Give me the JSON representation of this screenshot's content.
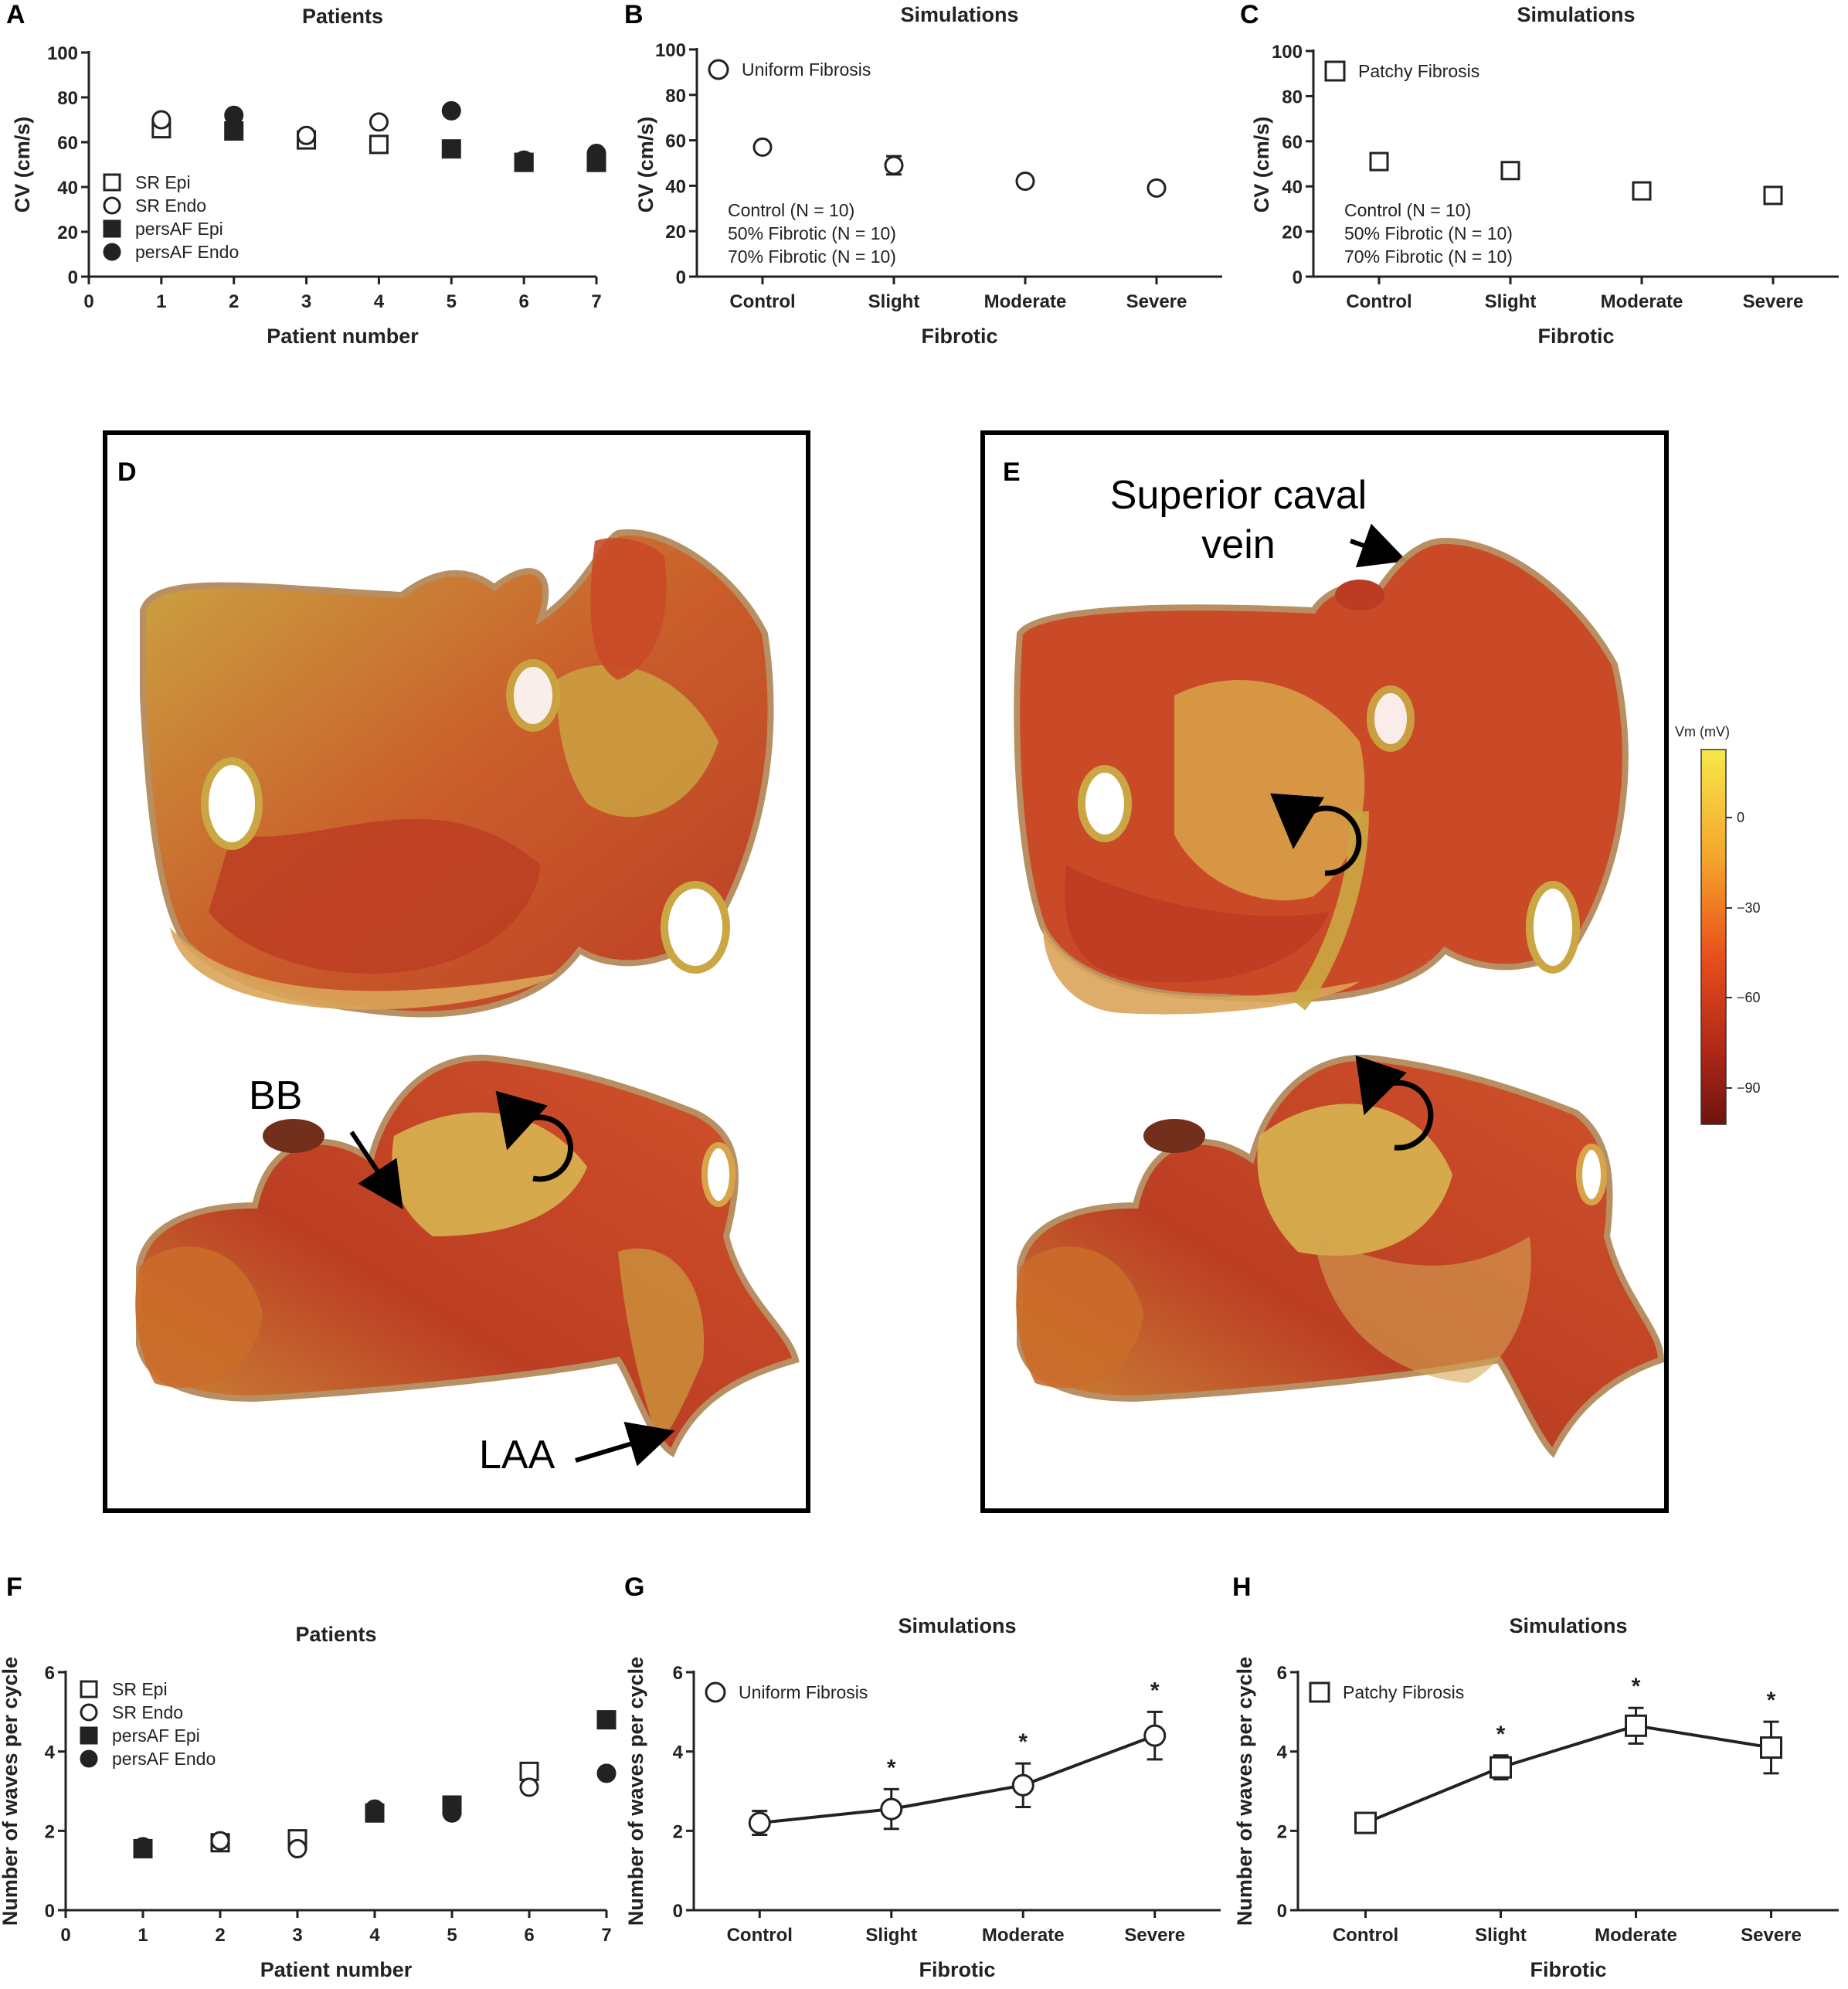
{
  "panel_labels": [
    "A",
    "B",
    "C",
    "D",
    "E",
    "F",
    "G",
    "H"
  ],
  "colors": {
    "marker": "#222222",
    "frame": "#000000",
    "colorbar_top": "#f7e84a",
    "colorbar_mid": "#f09020",
    "colorbar_bottom": "#7a1410",
    "tissue_red": "#c43a1e",
    "tissue_yellow": "#c9a33a"
  },
  "annotations": {
    "bb": "BB",
    "laa": "LAA",
    "svc_line1": "Superior caval",
    "svc_line2": "vein",
    "colorbar_title": "Vm (mV)",
    "colorbar_ticks": [
      "0",
      "−30",
      "−60",
      "−90"
    ]
  },
  "chart_data": [
    {
      "id": "A",
      "type": "scatter",
      "title": "Patients",
      "xlabel": "Patient number",
      "ylabel": "CV (cm/s)",
      "xlim": [
        0,
        7
      ],
      "ylim": [
        0,
        100
      ],
      "xticks": [
        "0",
        "1",
        "2",
        "3",
        "4",
        "5",
        "6",
        "7"
      ],
      "yticks": [
        "0",
        "20",
        "40",
        "60",
        "80",
        "100"
      ],
      "legend_position": "lower-left",
      "series": [
        {
          "name": "SR Epi",
          "marker": "square-open",
          "x": [
            1,
            3,
            4,
            6,
            7
          ],
          "y": [
            66,
            61,
            59,
            51,
            51
          ]
        },
        {
          "name": "SR Endo",
          "marker": "circle-open",
          "x": [
            1,
            3,
            4,
            6,
            7
          ],
          "y": [
            70,
            63,
            69,
            52,
            54
          ]
        },
        {
          "name": "persAF Epi",
          "marker": "square-filled",
          "x": [
            2,
            5,
            6,
            7
          ],
          "y": [
            65,
            57,
            51,
            51
          ]
        },
        {
          "name": "persAF Endo",
          "marker": "circle-filled",
          "x": [
            2,
            5,
            6,
            7
          ],
          "y": [
            72,
            74,
            52,
            55
          ]
        }
      ]
    },
    {
      "id": "B",
      "type": "scatter",
      "title": "Simulations",
      "xlabel": "Fibrotic",
      "ylabel": "CV (cm/s)",
      "categories": [
        "Control",
        "Slight",
        "Moderate",
        "Severe"
      ],
      "ylim": [
        0,
        100
      ],
      "yticks": [
        "0",
        "20",
        "40",
        "60",
        "80",
        "100"
      ],
      "legend_position": "top-left",
      "notes": [
        "Control (N = 10)",
        "50% Fibrotic  (N = 10)",
        "70% Fibrotic (N = 10)"
      ],
      "series": [
        {
          "name": "Uniform Fibrosis",
          "marker": "circle-open",
          "values": [
            57,
            49,
            42,
            39
          ],
          "errors": [
            0,
            4,
            0,
            0
          ]
        }
      ]
    },
    {
      "id": "C",
      "type": "scatter",
      "title": "Simulations",
      "xlabel": "Fibrotic",
      "ylabel": "CV (cm/s)",
      "categories": [
        "Control",
        "Slight",
        "Moderate",
        "Severe"
      ],
      "ylim": [
        0,
        100
      ],
      "yticks": [
        "0",
        "20",
        "40",
        "60",
        "80",
        "100"
      ],
      "legend_position": "top-left",
      "notes": [
        "Control (N = 10)",
        "50% Fibrotic  (N = 10)",
        "70% Fibrotic (N = 10)"
      ],
      "series": [
        {
          "name": "Patchy Fibrosis",
          "marker": "square-open",
          "values": [
            51,
            47,
            38,
            36
          ],
          "errors": [
            0,
            0,
            0,
            0
          ]
        }
      ]
    },
    {
      "id": "F",
      "type": "scatter",
      "title": "Patients",
      "xlabel": "Patient number",
      "ylabel": "Number of waves per cycle",
      "xlim": [
        0,
        7
      ],
      "ylim": [
        0,
        6
      ],
      "xticks": [
        "0",
        "1",
        "2",
        "3",
        "4",
        "5",
        "6",
        "7"
      ],
      "yticks": [
        "0",
        "2",
        "4",
        "6"
      ],
      "legend_position": "top-left",
      "series": [
        {
          "name": "SR Epi",
          "marker": "square-open",
          "x": [
            2,
            3,
            6
          ],
          "y": [
            1.7,
            1.8,
            3.5
          ]
        },
        {
          "name": "SR Endo",
          "marker": "circle-open",
          "x": [
            2,
            3,
            6
          ],
          "y": [
            1.75,
            1.55,
            3.1
          ]
        },
        {
          "name": "persAF Epi",
          "marker": "square-filled",
          "x": [
            1,
            4,
            5,
            7
          ],
          "y": [
            1.55,
            2.45,
            2.65,
            4.8
          ]
        },
        {
          "name": "persAF Endo",
          "marker": "circle-filled",
          "x": [
            1,
            4,
            5,
            7
          ],
          "y": [
            1.6,
            2.55,
            2.45,
            3.45
          ]
        }
      ]
    },
    {
      "id": "G",
      "type": "line",
      "title": "Simulations",
      "xlabel": "Fibrotic",
      "ylabel": "Number of waves per cycle",
      "categories": [
        "Control",
        "Slight",
        "Moderate",
        "Severe"
      ],
      "ylim": [
        0,
        6
      ],
      "yticks": [
        "0",
        "2",
        "4",
        "6"
      ],
      "legend_position": "top-left",
      "significance": [
        "",
        "*",
        "*",
        "*"
      ],
      "series": [
        {
          "name": "Uniform Fibrosis",
          "marker": "circle-open",
          "values": [
            2.2,
            2.55,
            3.15,
            4.4
          ],
          "errors": [
            0.3,
            0.5,
            0.55,
            0.6
          ]
        }
      ]
    },
    {
      "id": "H",
      "type": "line",
      "title": "Simulations",
      "xlabel": "Fibrotic",
      "ylabel": "Number of waves per cycle",
      "categories": [
        "Control",
        "Slight",
        "Moderate",
        "Severe"
      ],
      "ylim": [
        0,
        6
      ],
      "yticks": [
        "0",
        "2",
        "4",
        "6"
      ],
      "legend_position": "top-left",
      "significance": [
        "",
        "*",
        "*",
        "*"
      ],
      "series": [
        {
          "name": "Patchy Fibrosis",
          "marker": "square-open",
          "values": [
            2.2,
            3.6,
            4.65,
            4.1
          ],
          "errors": [
            0.1,
            0.3,
            0.45,
            0.65
          ]
        }
      ]
    }
  ]
}
